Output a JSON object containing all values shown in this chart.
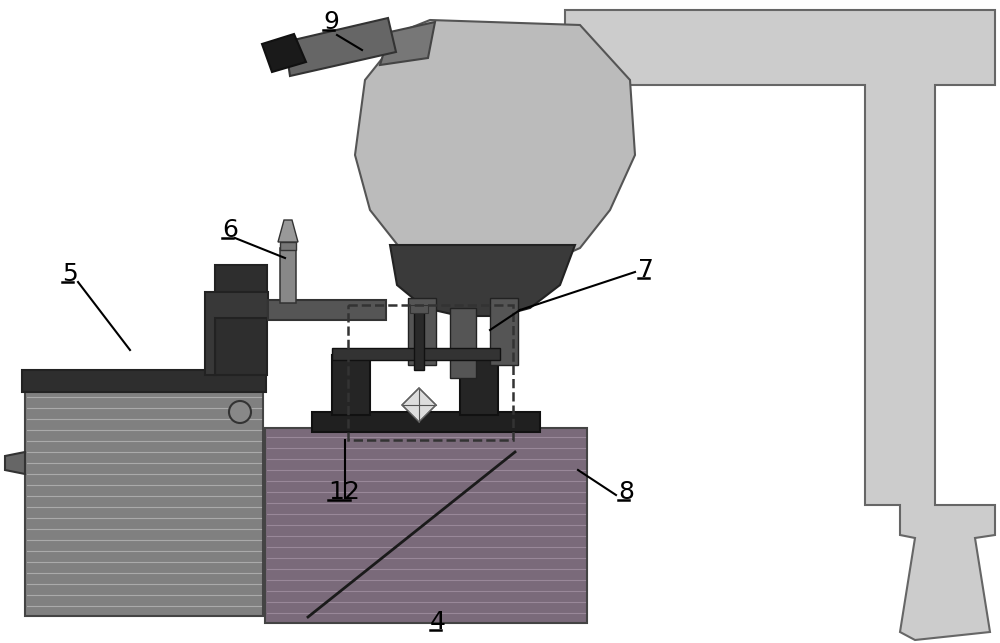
{
  "bg": "#ffffff",
  "arm_gray": "#cccccc",
  "arm_ec": "#666666",
  "micro_body": "#bbbbbb",
  "micro_ec": "#555555",
  "micro_dark": "#3a3a3a",
  "finger_gray": "#555555",
  "camera_dark": "#1a1a1a",
  "camera_body": "#666666",
  "stage_dark": "#2e2e2e",
  "stage_fill": "#808080",
  "stripe_line": "#aaaaaa",
  "dac_block": "#7a6a7a",
  "dac_stripe": "#998899",
  "plate_dark": "#202020",
  "pillar_dark": "#252525",
  "needle_dark": "#2a2a2a",
  "diamond_fill": "#dddddd",
  "label_fs": 18,
  "lw_main": 1.5
}
